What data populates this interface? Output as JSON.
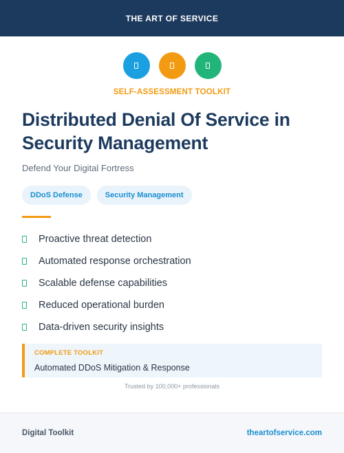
{
  "header": {
    "brand": "THE ART OF SERVICE"
  },
  "icons": [
    {
      "name": "document-icon",
      "color": "#1aa0e0"
    },
    {
      "name": "document-icon",
      "color": "#f29b12"
    },
    {
      "name": "document-icon",
      "color": "#22b57b"
    }
  ],
  "hero": {
    "kicker": "SELF-ASSESSMENT TOOLKIT",
    "title": "Distributed Denial Of Service in Security Management",
    "subtitle": "Defend Your Digital Fortress"
  },
  "tags": [
    "DDoS Defense",
    "Security Management"
  ],
  "features": [
    "Proactive threat detection",
    "Automated response orchestration",
    "Scalable defense capabilities",
    "Reduced operational burden",
    "Data-driven security insights"
  ],
  "callout": {
    "label": "COMPLETE TOOLKIT",
    "text": "Automated DDoS Mitigation & Response"
  },
  "trusted": "Trusted by 100,000+ professionals",
  "footer": {
    "left": "Digital Toolkit",
    "right": "theartofservice.com"
  },
  "colors": {
    "navy": "#1c3a5e",
    "accent_orange": "#f29b12",
    "accent_blue": "#1b8fd0",
    "accent_green": "#2ab27b"
  }
}
